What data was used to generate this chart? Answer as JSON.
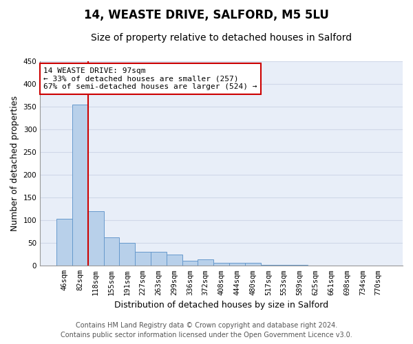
{
  "title1": "14, WEASTE DRIVE, SALFORD, M5 5LU",
  "title2": "Size of property relative to detached houses in Salford",
  "xlabel": "Distribution of detached houses by size in Salford",
  "ylabel": "Number of detached properties",
  "categories": [
    "46sqm",
    "82sqm",
    "118sqm",
    "155sqm",
    "191sqm",
    "227sqm",
    "263sqm",
    "299sqm",
    "336sqm",
    "372sqm",
    "408sqm",
    "444sqm",
    "480sqm",
    "517sqm",
    "553sqm",
    "589sqm",
    "625sqm",
    "661sqm",
    "698sqm",
    "734sqm",
    "770sqm"
  ],
  "values": [
    104,
    355,
    120,
    62,
    50,
    30,
    30,
    25,
    11,
    14,
    7,
    7,
    7,
    2,
    2,
    2,
    1,
    0,
    1,
    0,
    1
  ],
  "bar_color": "#b8d0ea",
  "bar_edge_color": "#6699cc",
  "vline_x_index": 1.5,
  "annotation_line1": "14 WEASTE DRIVE: 97sqm",
  "annotation_line2": "← 33% of detached houses are smaller (257)",
  "annotation_line3": "67% of semi-detached houses are larger (524) →",
  "annotation_box_color": "#ffffff",
  "annotation_box_edge_color": "#cc0000",
  "vline_color": "#cc0000",
  "footer1": "Contains HM Land Registry data © Crown copyright and database right 2024.",
  "footer2": "Contains public sector information licensed under the Open Government Licence v3.0.",
  "ylim": [
    0,
    450
  ],
  "yticks": [
    0,
    50,
    100,
    150,
    200,
    250,
    300,
    350,
    400,
    450
  ],
  "grid_color": "#d0d8e8",
  "bg_color": "#e8eef8",
  "title1_fontsize": 12,
  "title2_fontsize": 10,
  "tick_fontsize": 7.5,
  "label_fontsize": 9,
  "footer_fontsize": 7,
  "annot_fontsize": 8
}
